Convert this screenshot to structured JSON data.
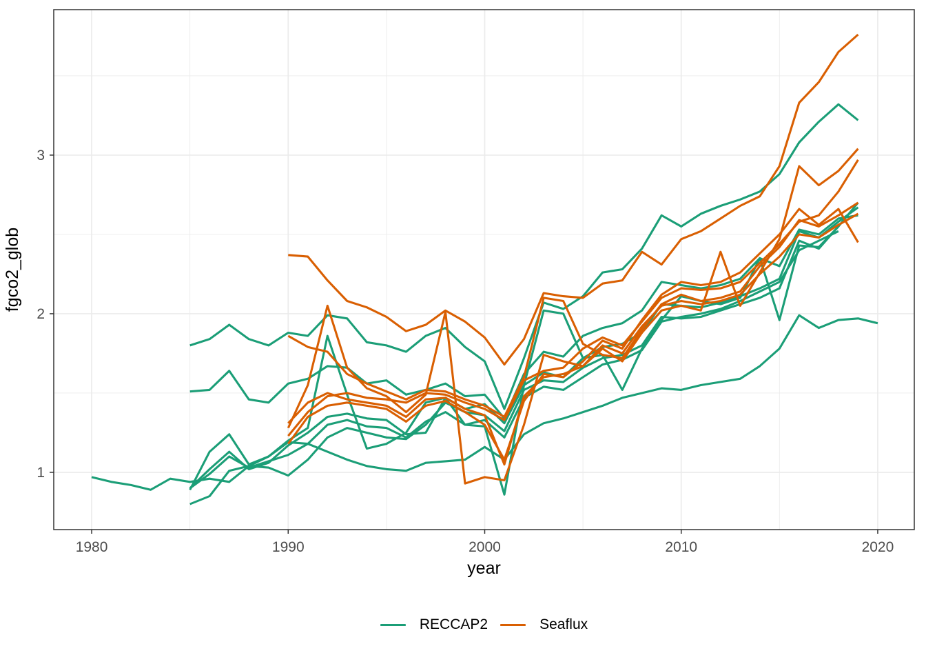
{
  "chart_data": {
    "type": "line",
    "title": "",
    "xlabel": "year",
    "ylabel": "fgco2_glob",
    "xlim": [
      1978.07,
      2021.86
    ],
    "ylim": [
      0.639,
      3.917
    ],
    "x_major_ticks": [
      1980,
      1990,
      2000,
      2010,
      2020
    ],
    "x_minor_ticks": [
      1985,
      1995,
      2005,
      2015
    ],
    "x_tick_labels": [
      "1980",
      "1990",
      "2000",
      "2010",
      "2020"
    ],
    "y_major_ticks": [
      1,
      2,
      3
    ],
    "y_minor_ticks": [
      1.5,
      2.5,
      3.5
    ],
    "y_tick_labels": [
      "1",
      "2",
      "3"
    ],
    "grid": "major+minor",
    "legend_position": "bottom",
    "panel_background": "#FFFFFF",
    "panel_border_color": "#333333",
    "grid_color": "#EBEBEB",
    "axis_text_color": "#4D4D4D",
    "axis_title_color": "#000000",
    "groups": [
      {
        "id": "reccap2",
        "name": "RECCAP2",
        "color": "#1B9E77"
      },
      {
        "id": "seaflux",
        "name": "Seaflux",
        "color": "#D95F02"
      }
    ],
    "series": [
      {
        "id": "reccap2_a",
        "group": "reccap2",
        "start_year": 1980,
        "values": [
          0.97,
          0.94,
          0.92,
          0.89,
          0.96,
          0.94,
          0.96,
          0.94,
          1.04,
          1.1,
          1.19,
          1.18,
          1.13,
          1.08,
          1.04,
          1.02,
          1.01,
          1.06,
          1.07,
          1.08,
          1.16,
          1.08,
          1.24,
          1.31,
          1.34,
          1.38,
          1.42,
          1.47,
          1.5,
          1.53,
          1.52,
          1.55,
          1.57,
          1.59,
          1.67,
          1.78,
          1.99,
          1.91,
          1.96,
          1.97,
          1.94
        ]
      },
      {
        "id": "reccap2_b",
        "group": "reccap2",
        "start_year": 1985,
        "values": [
          1.8,
          1.84,
          1.93,
          1.84,
          1.8,
          1.88,
          1.86,
          1.99,
          1.97,
          1.82,
          1.8,
          1.76,
          1.86,
          1.91,
          1.79,
          1.7,
          1.4,
          1.72,
          2.07,
          2.03,
          2.11,
          2.26,
          2.28,
          2.41,
          2.62,
          2.55,
          2.63,
          2.68,
          2.72,
          2.77,
          2.88,
          3.08,
          3.21,
          3.32,
          3.22
        ]
      },
      {
        "id": "reccap2_c",
        "group": "reccap2",
        "start_year": 1985,
        "values": [
          1.51,
          1.52,
          1.64,
          1.46,
          1.44,
          1.56,
          1.59,
          1.67,
          1.66,
          1.56,
          1.58,
          1.49,
          1.52,
          1.56,
          1.48,
          1.49,
          1.34,
          1.62,
          1.76,
          1.73,
          1.86,
          1.91,
          1.94,
          2.02,
          2.2,
          2.18,
          2.16,
          2.18,
          2.22,
          2.35,
          2.3,
          2.53,
          2.5,
          2.6,
          2.62
        ]
      },
      {
        "id": "reccap2_d",
        "group": "reccap2",
        "start_year": 1985,
        "values": [
          0.89,
          1.13,
          1.24,
          1.05,
          1.1,
          1.2,
          1.28,
          1.86,
          1.49,
          1.15,
          1.18,
          1.25,
          1.44,
          1.47,
          1.3,
          1.29,
          0.86,
          1.55,
          2.02,
          2.0,
          1.72,
          1.74,
          1.52,
          1.78,
          1.96,
          2.11,
          2.08,
          2.06,
          2.1,
          2.35,
          1.96,
          2.43,
          2.42,
          2.55,
          2.7
        ]
      },
      {
        "id": "reccap2_e",
        "group": "reccap2",
        "start_year": 1985,
        "values": [
          0.9,
          1.02,
          1.13,
          1.02,
          1.06,
          1.17,
          1.25,
          1.35,
          1.37,
          1.34,
          1.33,
          1.24,
          1.25,
          1.47,
          1.4,
          1.43,
          1.31,
          1.55,
          1.63,
          1.6,
          1.72,
          1.79,
          1.81,
          1.88,
          2.06,
          2.05,
          2.04,
          2.07,
          2.11,
          2.16,
          2.22,
          2.52,
          2.48,
          2.58,
          2.67
        ]
      },
      {
        "id": "reccap2_f",
        "group": "reccap2",
        "start_year": 1985,
        "values": [
          0.8,
          0.85,
          1.01,
          1.04,
          1.03,
          0.98,
          1.08,
          1.22,
          1.28,
          1.25,
          1.22,
          1.21,
          1.3,
          1.44,
          1.38,
          1.36,
          1.26,
          1.52,
          1.58,
          1.57,
          1.66,
          1.72,
          1.74,
          1.8,
          1.98,
          1.97,
          1.98,
          2.02,
          2.06,
          2.1,
          2.16,
          2.46,
          2.41,
          2.55
        ]
      },
      {
        "id": "reccap2_g",
        "group": "reccap2",
        "start_year": 1985,
        "values": [
          0.9,
          0.99,
          1.1,
          1.03,
          1.07,
          1.11,
          1.18,
          1.3,
          1.33,
          1.29,
          1.28,
          1.22,
          1.32,
          1.38,
          1.3,
          1.33,
          1.22,
          1.47,
          1.54,
          1.52,
          1.6,
          1.68,
          1.71,
          1.77,
          1.95,
          1.98,
          2.0,
          2.03,
          2.08,
          2.14,
          2.2,
          2.4,
          2.46,
          2.52
        ]
      },
      {
        "id": "seaflux_a",
        "group": "seaflux",
        "start_year": 1990,
        "values": [
          2.37,
          2.36,
          2.21,
          2.08,
          2.04,
          1.98,
          1.89,
          1.93,
          2.02,
          1.95,
          1.85,
          1.68,
          1.84,
          2.13,
          2.11,
          2.1,
          2.19,
          2.21,
          2.39,
          2.31,
          2.47,
          2.52,
          2.6,
          2.68,
          2.74,
          2.93,
          3.33,
          3.46,
          3.65,
          3.76
        ]
      },
      {
        "id": "seaflux_b",
        "group": "seaflux",
        "start_year": 1990,
        "values": [
          1.86,
          1.79,
          1.76,
          1.62,
          1.56,
          1.51,
          1.46,
          1.52,
          1.51,
          1.46,
          1.42,
          1.35,
          1.6,
          2.1,
          2.08,
          1.81,
          1.74,
          1.72,
          1.9,
          2.06,
          2.12,
          2.08,
          2.1,
          2.14,
          2.3,
          2.42,
          2.59,
          2.55,
          2.62,
          2.7
        ]
      },
      {
        "id": "seaflux_c",
        "group": "seaflux",
        "start_year": 1990,
        "values": [
          1.31,
          1.44,
          1.5,
          1.46,
          1.44,
          1.42,
          1.35,
          1.46,
          1.47,
          1.4,
          1.36,
          1.05,
          1.48,
          1.6,
          1.62,
          1.67,
          1.8,
          1.75,
          1.92,
          2.05,
          2.08,
          2.06,
          2.08,
          2.12,
          2.25,
          2.36,
          2.5,
          2.48,
          2.56,
          2.63
        ]
      },
      {
        "id": "seaflux_d",
        "group": "seaflux",
        "start_year": 1990,
        "values": [
          1.28,
          1.55,
          2.05,
          1.66,
          1.53,
          1.48,
          1.38,
          1.49,
          2.01,
          0.93,
          0.97,
          0.95,
          1.3,
          1.74,
          1.7,
          1.67,
          1.78,
          1.7,
          1.88,
          2.02,
          2.05,
          2.02,
          2.39,
          2.05,
          2.26,
          2.47,
          2.93,
          2.81,
          2.9,
          3.04
        ]
      },
      {
        "id": "seaflux_e",
        "group": "seaflux",
        "start_year": 1990,
        "values": [
          1.23,
          1.38,
          1.48,
          1.5,
          1.47,
          1.46,
          1.44,
          1.5,
          1.49,
          1.44,
          1.4,
          1.33,
          1.58,
          1.64,
          1.66,
          1.78,
          1.85,
          1.8,
          1.95,
          2.1,
          2.16,
          2.15,
          2.16,
          2.2,
          2.32,
          2.44,
          2.58,
          2.62,
          2.77,
          2.97
        ]
      },
      {
        "id": "seaflux_f",
        "group": "seaflux",
        "start_year": 1990,
        "values": [
          1.18,
          1.35,
          1.42,
          1.44,
          1.42,
          1.4,
          1.32,
          1.42,
          1.45,
          1.38,
          1.3,
          1.08,
          1.45,
          1.62,
          1.6,
          1.7,
          1.83,
          1.78,
          1.96,
          2.12,
          2.2,
          2.18,
          2.2,
          2.26,
          2.38,
          2.5,
          2.66,
          2.56,
          2.66,
          2.45
        ]
      }
    ]
  }
}
